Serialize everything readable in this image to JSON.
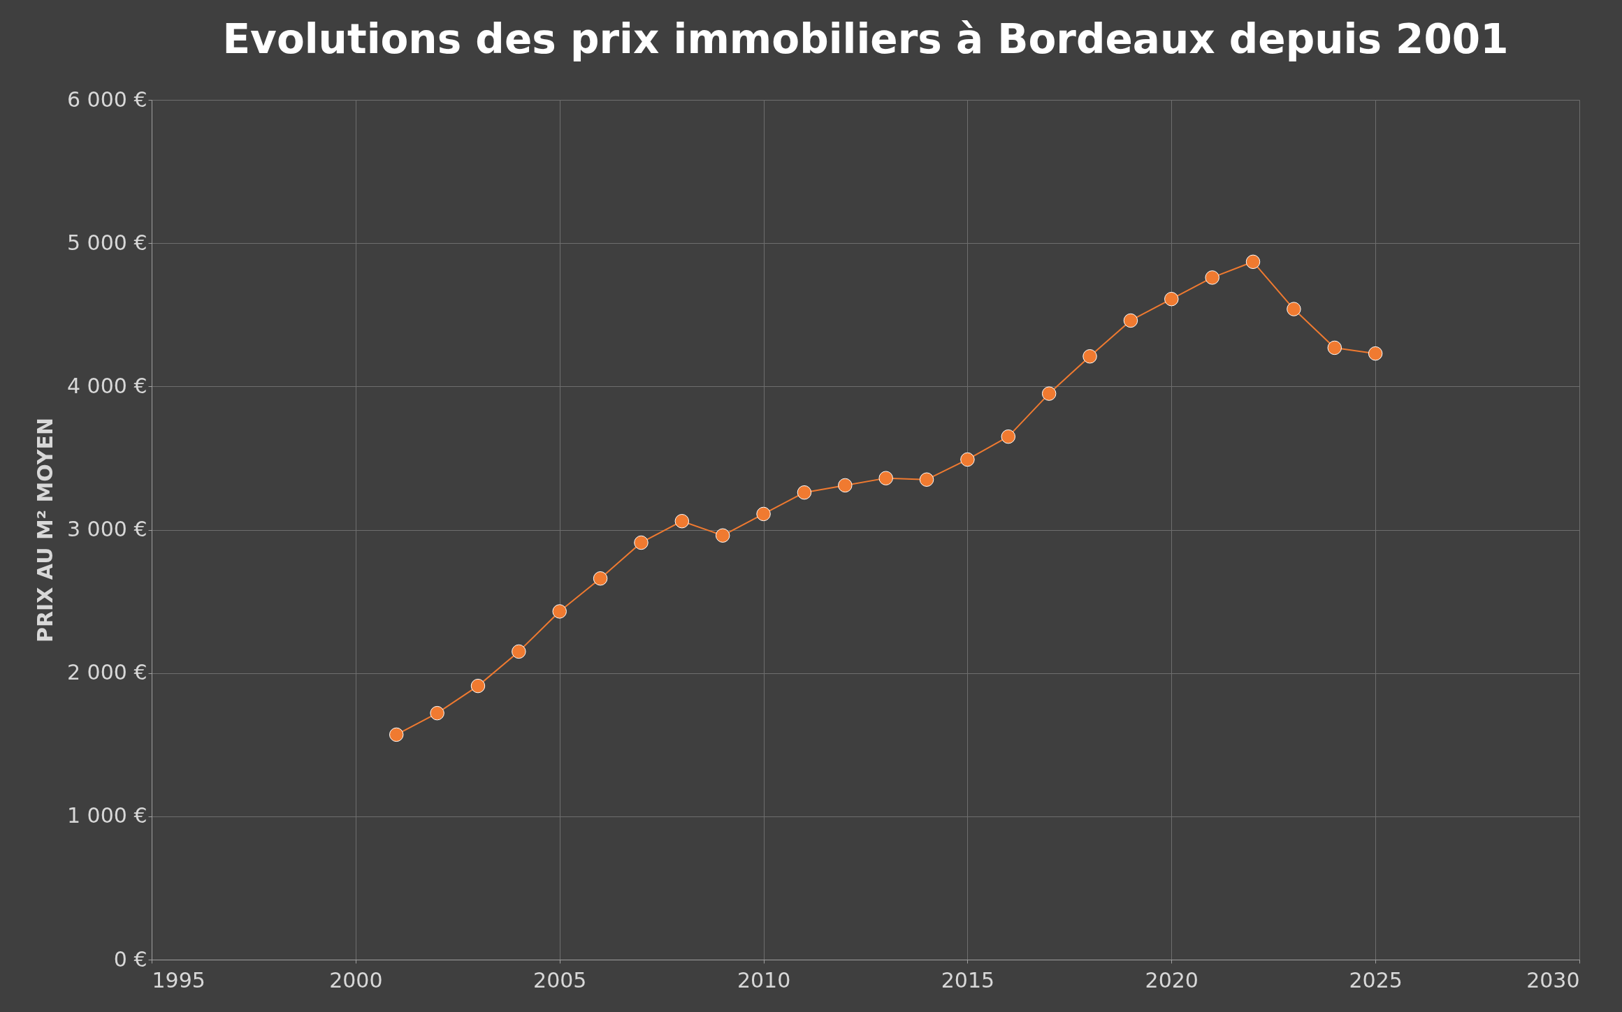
{
  "chart_data": {
    "type": "line",
    "title": "Evolutions des prix immobiliers à Bordeaux depuis 2001",
    "ylabel": "PRIX AU M² MOYEN",
    "x": [
      2001,
      2002,
      2003,
      2004,
      2005,
      2006,
      2007,
      2008,
      2009,
      2010,
      2011,
      2012,
      2013,
      2014,
      2015,
      2016,
      2017,
      2018,
      2019,
      2020,
      2021,
      2022,
      2023,
      2024,
      2025
    ],
    "series": [
      {
        "color": "#f07a30",
        "values": [
          1570,
          1720,
          1910,
          2150,
          2430,
          2660,
          2910,
          3060,
          2960,
          3110,
          3260,
          3310,
          3360,
          3350,
          3490,
          3650,
          3950,
          4210,
          4460,
          4610,
          4760,
          4870,
          4540,
          4270,
          4230
        ]
      }
    ],
    "xlim": [
      1995,
      2030
    ],
    "xticks": [
      1995,
      2000,
      2005,
      2010,
      2015,
      2020,
      2025,
      2030
    ],
    "ylim": [
      0,
      6000
    ],
    "yticks": [
      {
        "value": 0,
        "label": "0 €"
      },
      {
        "value": 1000,
        "label": "1 000 €"
      },
      {
        "value": 2000,
        "label": "2 000 €"
      },
      {
        "value": 3000,
        "label": "3 000 €"
      },
      {
        "value": 4000,
        "label": "4 000 €"
      },
      {
        "value": 5000,
        "label": "5 000 €"
      },
      {
        "value": 6000,
        "label": "6 000 €"
      }
    ],
    "grid": true,
    "marker": "circle",
    "line_style": "solid"
  }
}
